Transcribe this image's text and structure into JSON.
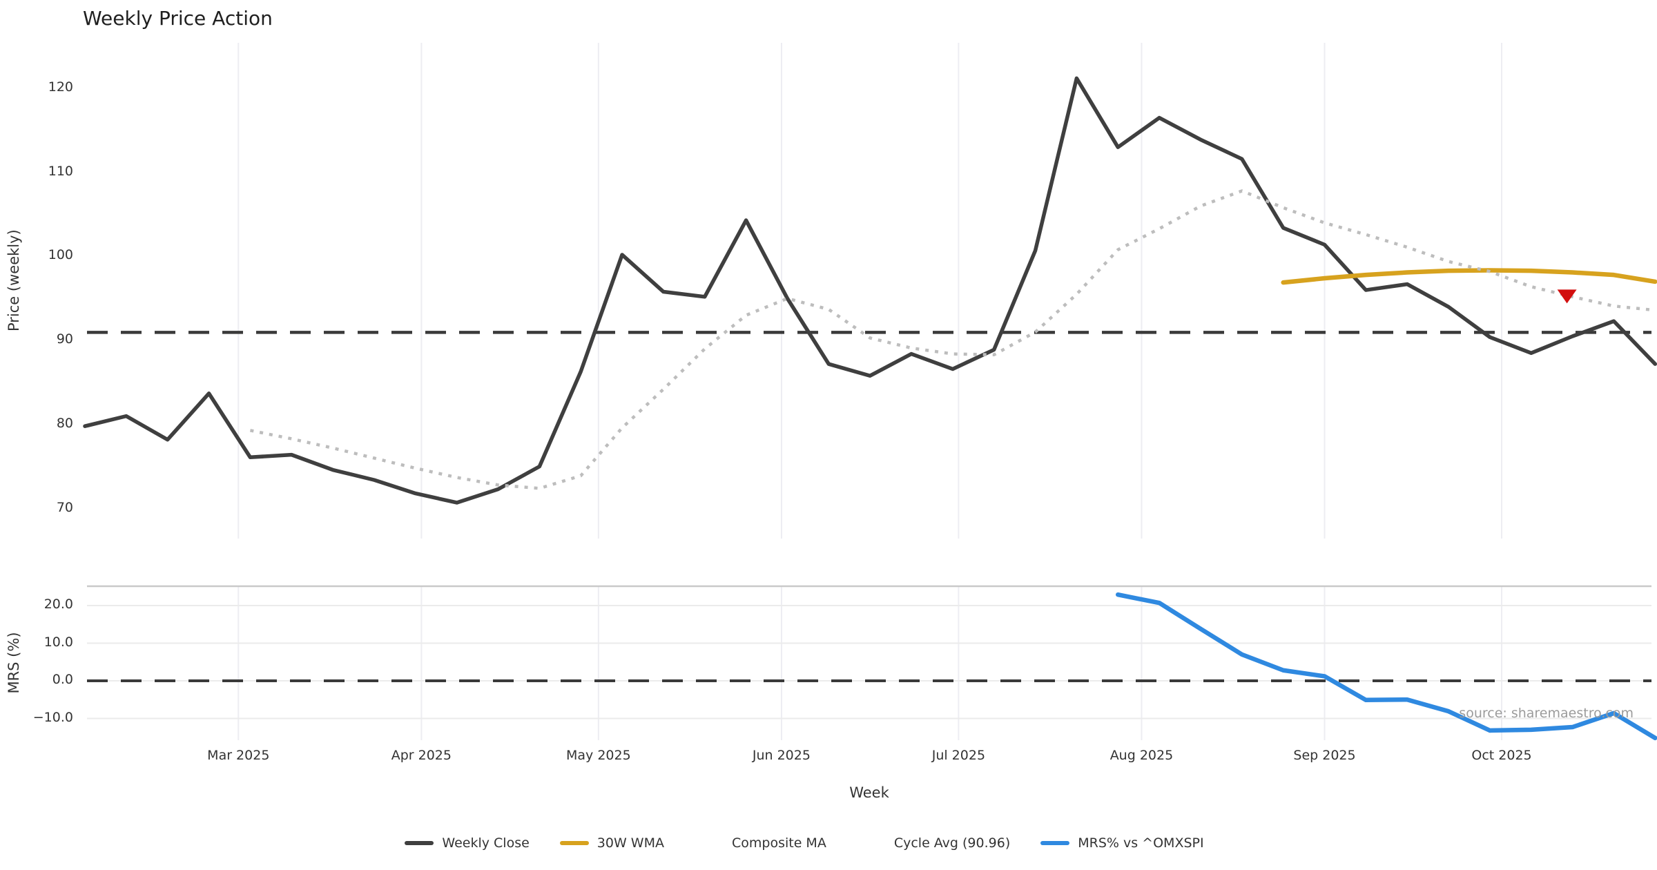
{
  "title": "Weekly Price Action",
  "source_text": "source: sharemaestro.com",
  "weeks": [
    "2025-02-03",
    "2025-02-10",
    "2025-02-17",
    "2025-02-24",
    "2025-03-03",
    "2025-03-10",
    "2025-03-17",
    "2025-03-24",
    "2025-03-31",
    "2025-04-07",
    "2025-04-14",
    "2025-04-21",
    "2025-04-28",
    "2025-05-05",
    "2025-05-12",
    "2025-05-19",
    "2025-05-26",
    "2025-06-02",
    "2025-06-09",
    "2025-06-16",
    "2025-06-23",
    "2025-06-30",
    "2025-07-07",
    "2025-07-14",
    "2025-07-21",
    "2025-07-28",
    "2025-08-04",
    "2025-08-11",
    "2025-08-18",
    "2025-08-25",
    "2025-09-01",
    "2025-09-08",
    "2025-09-15",
    "2025-09-22",
    "2025-09-29",
    "2025-10-06",
    "2025-10-13",
    "2025-10-20",
    "2025-10-27"
  ],
  "x_axis": {
    "label": "Week",
    "month_ticks": [
      {
        "label": "Mar 2025",
        "day_offset": 26
      },
      {
        "label": "Apr 2025",
        "day_offset": 57
      },
      {
        "label": "May 2025",
        "day_offset": 87
      },
      {
        "label": "Jun 2025",
        "day_offset": 118
      },
      {
        "label": "Jul 2025",
        "day_offset": 148
      },
      {
        "label": "Aug 2025",
        "day_offset": 179
      },
      {
        "label": "Sep 2025",
        "day_offset": 210
      },
      {
        "label": "Oct 2025",
        "day_offset": 240
      }
    ]
  },
  "chart_data": [
    {
      "type": "line",
      "panel": "top",
      "title": "Weekly Price Action",
      "ylabel": "Price (weekly)",
      "ylim": [
        66.5,
        125.5
      ],
      "yticks": [
        120,
        110,
        100,
        90,
        80,
        70
      ],
      "grid": "vertical-months",
      "cycle_avg": 90.96,
      "series": [
        {
          "name": "Weekly Close",
          "style": "solid",
          "color": "#3f3f3f",
          "width": 5.5,
          "start_week": 0,
          "values": [
            79.8,
            81.0,
            78.2,
            83.7,
            76.1,
            76.4,
            74.6,
            73.4,
            71.8,
            70.7,
            72.3,
            75.0,
            86.3,
            100.2,
            95.8,
            95.2,
            104.3,
            95.0,
            87.2,
            85.8,
            88.4,
            86.6,
            88.9,
            100.7,
            121.2,
            113.0,
            116.5,
            113.9,
            111.6,
            103.4,
            101.4,
            96.0,
            96.7,
            94.0,
            90.4,
            88.5,
            90.5,
            92.3,
            87.2
          ]
        },
        {
          "name": "30W WMA",
          "style": "solid",
          "color": "#d7a21e",
          "width": 6.5,
          "start_week": 29,
          "values": [
            96.9,
            97.4,
            97.8,
            98.1,
            98.3,
            98.35,
            98.3,
            98.1,
            97.8,
            97.0
          ]
        },
        {
          "name": "Composite MA",
          "style": "dotted",
          "color": "#bdbdbd",
          "width": 4.5,
          "start_week": 4,
          "values": [
            79.3,
            78.3,
            77.2,
            76.0,
            74.8,
            73.7,
            72.8,
            72.4,
            73.9,
            79.6,
            84.2,
            89.0,
            93.0,
            95.0,
            93.7,
            90.3,
            89.1,
            88.4,
            88.3,
            91.0,
            95.5,
            100.8,
            103.3,
            106.0,
            107.8,
            105.8,
            104.0,
            102.6,
            101.1,
            99.4,
            98.2,
            96.4,
            95.2,
            94.1,
            93.6
          ]
        },
        {
          "name": "Cycle Avg (90.96)",
          "style": "dashed",
          "color": "#3a3a3a",
          "width": 4.5,
          "horizontal_at": 90.96
        }
      ],
      "marker": {
        "name": "sell-signal",
        "shape": "triangle-down",
        "week": 36,
        "value": 95.4,
        "color": "#d20f0f"
      }
    },
    {
      "type": "line",
      "panel": "bottom",
      "ylabel": "MRS (%)",
      "ylim": [
        -15.8,
        25.1
      ],
      "yticks": [
        20.0,
        10.0,
        0.0,
        -10.0
      ],
      "ytick_labels": [
        "20.0",
        "10.0",
        "0.0",
        "−10.0"
      ],
      "grid": "both",
      "zero_line": 0.0,
      "series": [
        {
          "name": "MRS% vs ^OMXSPI",
          "style": "solid",
          "color": "#2f89e0",
          "width": 6.5,
          "start_week": 25,
          "values": [
            22.9,
            20.7,
            13.8,
            7.0,
            2.8,
            1.2,
            -5.1,
            -5.0,
            -8.1,
            -13.2,
            -13.0,
            -12.3,
            -8.6,
            -15.2
          ]
        }
      ]
    }
  ],
  "legend": [
    {
      "label": "Weekly Close",
      "style": "solid",
      "color": "#3f3f3f"
    },
    {
      "label": "30W WMA",
      "style": "solid",
      "color": "#d7a21e"
    },
    {
      "label": "Composite MA",
      "style": "dotted",
      "color": "#bdbdbd"
    },
    {
      "label": "Cycle Avg (90.96)",
      "style": "dashed",
      "color": "#3a3a3a"
    },
    {
      "label": "MRS% vs ^OMXSPI",
      "style": "solid",
      "color": "#2f89e0"
    }
  ],
  "colors": {
    "background": "#ffffff",
    "month_gridline": "#ededf2",
    "h_gridline": "#ebebeb",
    "panel_spine": "#c9c9c9",
    "tick_text": "#333333",
    "title_text": "#1f1f1f",
    "source_text": "#9b9b9b",
    "marker_red": "#d20f0f"
  }
}
